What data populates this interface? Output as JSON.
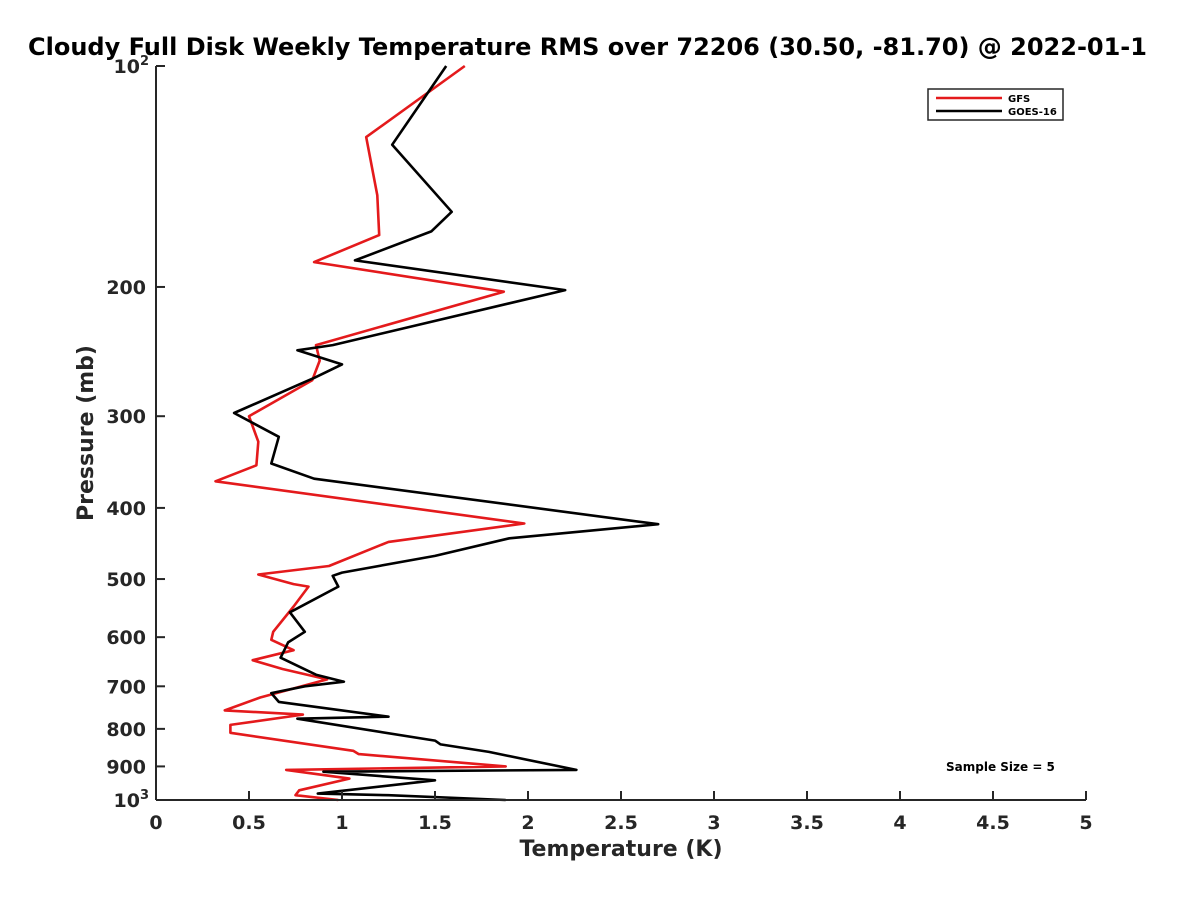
{
  "chart_data": {
    "type": "line",
    "title": "Cloudy Full Disk Weekly Temperature RMS over 72206 (30.50, -81.70) @ 2022-01-1",
    "xlabel": "Temperature (K)",
    "ylabel": "Pressure (mb)",
    "xlim": [
      0,
      5
    ],
    "ylim": [
      100,
      1000
    ],
    "y_scale": "log",
    "y_reversed": true,
    "x_ticks": [
      "0",
      "0.5",
      "1",
      "1.5",
      "2",
      "2.5",
      "3",
      "3.5",
      "4",
      "4.5",
      "5"
    ],
    "y_ticks": [
      {
        "value": 100,
        "label": "10",
        "sup": "2"
      },
      {
        "value": 200,
        "label": "200",
        "sup": ""
      },
      {
        "value": 300,
        "label": "300",
        "sup": ""
      },
      {
        "value": 400,
        "label": "400",
        "sup": ""
      },
      {
        "value": 500,
        "label": "500",
        "sup": ""
      },
      {
        "value": 600,
        "label": "600",
        "sup": ""
      },
      {
        "value": 700,
        "label": "700",
        "sup": ""
      },
      {
        "value": 800,
        "label": "800",
        "sup": ""
      },
      {
        "value": 900,
        "label": "900",
        "sup": ""
      },
      {
        "value": 1000,
        "label": "10",
        "sup": "3"
      }
    ],
    "grid": false,
    "legend_position": "top-right",
    "annotation": "Sample Size = 5",
    "series": [
      {
        "name": "GFS",
        "color": "#e41a1c",
        "points": [
          [
            1.66,
            100
          ],
          [
            1.13,
            125
          ],
          [
            1.19,
            150
          ],
          [
            1.2,
            170
          ],
          [
            0.85,
            185
          ],
          [
            1.87,
            203
          ],
          [
            0.86,
            240
          ],
          [
            0.88,
            252
          ],
          [
            0.84,
            268
          ],
          [
            0.5,
            300
          ],
          [
            0.55,
            325
          ],
          [
            0.54,
            350
          ],
          [
            0.32,
            368
          ],
          [
            1.98,
            420
          ],
          [
            1.25,
            445
          ],
          [
            0.93,
            480
          ],
          [
            0.55,
            493
          ],
          [
            0.74,
            508
          ],
          [
            0.82,
            512
          ],
          [
            0.74,
            545
          ],
          [
            0.63,
            590
          ],
          [
            0.62,
            605
          ],
          [
            0.74,
            625
          ],
          [
            0.52,
            645
          ],
          [
            0.68,
            663
          ],
          [
            0.92,
            685
          ],
          [
            0.56,
            725
          ],
          [
            0.37,
            755
          ],
          [
            0.79,
            765
          ],
          [
            0.4,
            790
          ],
          [
            0.4,
            810
          ],
          [
            1.06,
            857
          ],
          [
            1.09,
            866
          ],
          [
            1.88,
            900
          ],
          [
            0.7,
            910
          ],
          [
            1.04,
            935
          ],
          [
            0.77,
            970
          ],
          [
            0.75,
            985
          ],
          [
            0.98,
            1000
          ]
        ]
      },
      {
        "name": "GOES-16",
        "color": "#000000",
        "points": [
          [
            1.56,
            100
          ],
          [
            1.27,
            128
          ],
          [
            1.59,
            158
          ],
          [
            1.48,
            168
          ],
          [
            1.07,
            184
          ],
          [
            2.2,
            202
          ],
          [
            0.95,
            240
          ],
          [
            0.76,
            244
          ],
          [
            1.0,
            255
          ],
          [
            0.85,
            266
          ],
          [
            0.42,
            297
          ],
          [
            0.66,
            320
          ],
          [
            0.62,
            348
          ],
          [
            0.85,
            365
          ],
          [
            2.7,
            421
          ],
          [
            1.9,
            440
          ],
          [
            1.5,
            465
          ],
          [
            1.0,
            490
          ],
          [
            0.95,
            495
          ],
          [
            0.98,
            512
          ],
          [
            0.72,
            555
          ],
          [
            0.8,
            590
          ],
          [
            0.71,
            610
          ],
          [
            0.67,
            640
          ],
          [
            0.86,
            675
          ],
          [
            1.01,
            690
          ],
          [
            0.8,
            700
          ],
          [
            0.62,
            715
          ],
          [
            0.66,
            735
          ],
          [
            1.25,
            770
          ],
          [
            0.76,
            775
          ],
          [
            1.5,
            830
          ],
          [
            1.53,
            840
          ],
          [
            1.79,
            860
          ],
          [
            2.26,
            910
          ],
          [
            0.9,
            915
          ],
          [
            1.5,
            940
          ],
          [
            0.87,
            980
          ],
          [
            1.25,
            985
          ],
          [
            1.88,
            1000
          ]
        ]
      }
    ]
  }
}
